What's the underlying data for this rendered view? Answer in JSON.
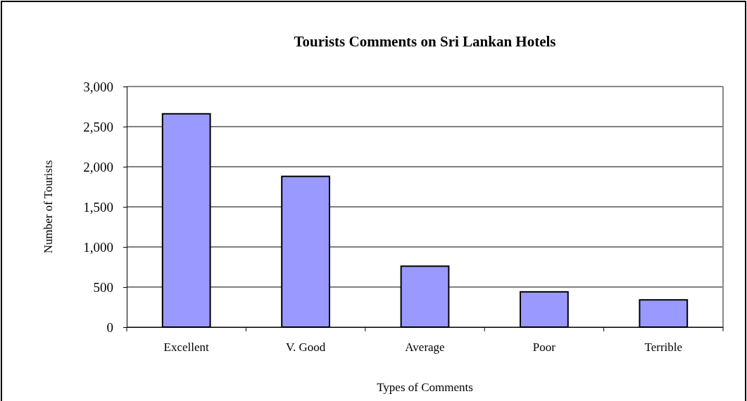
{
  "chart_data": {
    "type": "bar",
    "title": "Tourists Comments on Sri Lankan Hotels",
    "xlabel": "Types of Comments",
    "ylabel": "Number of Tourists",
    "categories": [
      "Excellent",
      "V. Good",
      "Average",
      "Poor",
      "Terrible"
    ],
    "values": [
      2660,
      1880,
      760,
      440,
      340
    ],
    "color": "#9999ff",
    "ylim": [
      0,
      3000
    ],
    "yticks": [
      {
        "value": 0,
        "label": "0"
      },
      {
        "value": 500,
        "label": "500"
      },
      {
        "value": 1000,
        "label": "1,000"
      },
      {
        "value": 1500,
        "label": "1,500"
      },
      {
        "value": 2000,
        "label": "2,000"
      },
      {
        "value": 2500,
        "label": "2,500"
      },
      {
        "value": 3000,
        "label": "3,000"
      }
    ],
    "grid": "y"
  }
}
